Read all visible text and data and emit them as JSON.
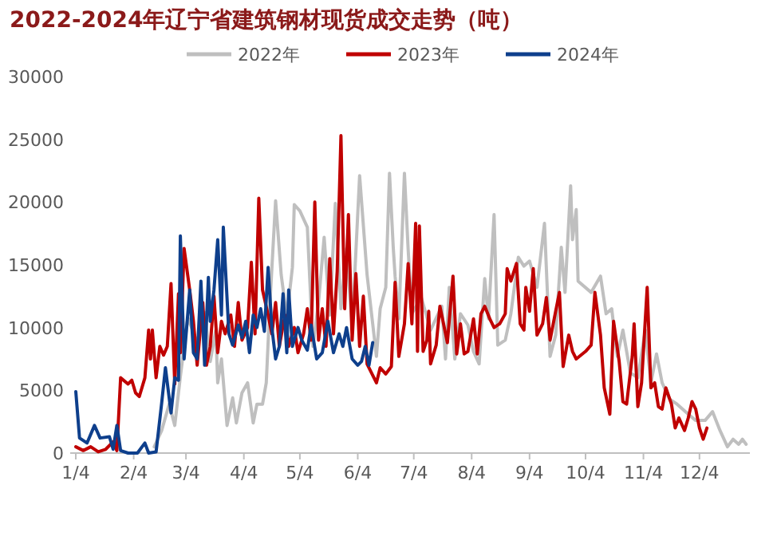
{
  "chart_data": {
    "type": "line",
    "title": "2022-2024年辽宁省建筑钢材现货成交走势（吨）",
    "legend": "top",
    "grid": false,
    "marker": "none",
    "line_style": "solid",
    "xlim": [
      "--01-01",
      "--12-31"
    ],
    "xticks": [
      {
        "value": "--01-04",
        "label": "1/4"
      },
      {
        "value": "--02-04",
        "label": "2/4"
      },
      {
        "value": "--03-04",
        "label": "3/4"
      },
      {
        "value": "--04-04",
        "label": "4/4"
      },
      {
        "value": "--05-04",
        "label": "5/4"
      },
      {
        "value": "--06-04",
        "label": "6/4"
      },
      {
        "value": "--07-04",
        "label": "7/4"
      },
      {
        "value": "--08-04",
        "label": "8/4"
      },
      {
        "value": "--09-04",
        "label": "9/4"
      },
      {
        "value": "--10-04",
        "label": "10/4"
      },
      {
        "value": "--11-04",
        "label": "11/4"
      },
      {
        "value": "--12-04",
        "label": "12/4"
      }
    ],
    "ylim": [
      0,
      30000
    ],
    "yticks": [
      0,
      5000,
      10000,
      15000,
      20000,
      25000,
      30000
    ],
    "series": [
      {
        "name": "2022年",
        "color": "#bfbfbf",
        "x": [
          "--02-15",
          "--02-19",
          "--02-23",
          "--02-26",
          "--03-01",
          "--03-05",
          "--03-10",
          "--03-14",
          "--03-17",
          "--03-20",
          "--03-21",
          "--03-23",
          "--03-26",
          "--03-29",
          "--03-31",
          "--04-03",
          "--04-06",
          "--04-09",
          "--04-11",
          "--04-14",
          "--04-16",
          "--04-18",
          "--04-21",
          "--04-24",
          "--04-27",
          "--04-30",
          "--05-01",
          "--05-04",
          "--05-08",
          "--05-11",
          "--05-14",
          "--05-17",
          "--05-20",
          "--05-23",
          "--05-26",
          "--05-29",
          "--06-01",
          "--06-05",
          "--06-09",
          "--06-14",
          "--06-16",
          "--06-19",
          "--06-21",
          "--06-23",
          "--06-24",
          "--06-26",
          "--06-29",
          "--07-01",
          "--07-03",
          "--07-08",
          "--07-13",
          "--07-19",
          "--07-21",
          "--07-23",
          "--07-26",
          "--07-29",
          "--08-02",
          "--08-05",
          "--08-08",
          "--08-11",
          "--08-13",
          "--08-16",
          "--08-18",
          "--08-22",
          "--08-25",
          "--08-29",
          "--09-01",
          "--09-04",
          "--09-08",
          "--09-12",
          "--09-15",
          "--09-18",
          "--09-21",
          "--09-23",
          "--09-26",
          "--09-27",
          "--09-29",
          "--09-30",
          "--10-07",
          "--10-12",
          "--10-15",
          "--10-18",
          "--10-21",
          "--10-24",
          "--10-28",
          "--11-01",
          "--11-05",
          "--11-08",
          "--11-11",
          "--11-14",
          "--11-18",
          "--11-22",
          "--11-25",
          "--11-28",
          "--12-02",
          "--12-07",
          "--12-11",
          "--12-15",
          "--12-19",
          "--12-22",
          "--12-25",
          "--12-27",
          "--12-29"
        ],
        "values": [
          500,
          1800,
          3900,
          2200,
          6100,
          10800,
          8800,
          11200,
          7300,
          9800,
          5600,
          7500,
          2200,
          4400,
          2400,
          4800,
          5600,
          2400,
          3900,
          3900,
          5600,
          12000,
          20100,
          14200,
          10800,
          14800,
          19800,
          19300,
          18000,
          8500,
          12000,
          17200,
          11000,
          19900,
          11500,
          16300,
          10000,
          22100,
          14200,
          7700,
          11500,
          13200,
          22300,
          16400,
          14100,
          10700,
          22300,
          16200,
          11100,
          12400,
          9800,
          11700,
          7500,
          13200,
          7500,
          11100,
          10200,
          8100,
          7100,
          13900,
          10700,
          19000,
          8600,
          9000,
          11100,
          15600,
          14900,
          15300,
          13200,
          18300,
          7700,
          9400,
          16400,
          12800,
          21300,
          17000,
          19400,
          13700,
          12800,
          14100,
          11100,
          11500,
          7700,
          9800,
          6400,
          6000,
          9800,
          5600,
          7900,
          5600,
          4300,
          3900,
          3500,
          3100,
          2600,
          2600,
          3300,
          1800,
          500,
          1100,
          700,
          1100,
          700
        ]
      },
      {
        "name": "2023年",
        "color": "#c00000",
        "x": [
          "--01-04",
          "--01-08",
          "--01-12",
          "--01-16",
          "--01-20",
          "--01-24",
          "--01-26",
          "--01-28",
          "--02-01",
          "--02-03",
          "--02-05",
          "--02-07",
          "--02-10",
          "--02-12",
          "--02-13",
          "--02-14",
          "--02-16",
          "--02-18",
          "--02-20",
          "--02-22",
          "--02-24",
          "--02-26",
          "--02-28",
          "--03-01",
          "--03-03",
          "--03-06",
          "--03-08",
          "--03-10",
          "--03-13",
          "--03-15",
          "--03-17",
          "--03-19",
          "--03-21",
          "--03-23",
          "--03-25",
          "--03-28",
          "--03-30",
          "--04-01",
          "--04-03",
          "--04-06",
          "--04-08",
          "--04-10",
          "--04-12",
          "--04-14",
          "--04-17",
          "--04-19",
          "--04-21",
          "--04-23",
          "--04-26",
          "--04-28",
          "--05-01",
          "--05-03",
          "--05-06",
          "--05-08",
          "--05-10",
          "--05-12",
          "--05-14",
          "--05-16",
          "--05-18",
          "--05-20",
          "--05-22",
          "--05-24",
          "--05-26",
          "--05-28",
          "--05-30",
          "--06-01",
          "--06-03",
          "--06-05",
          "--06-07",
          "--06-09",
          "--06-14",
          "--06-16",
          "--06-19",
          "--06-22",
          "--06-24",
          "--06-26",
          "--06-29",
          "--07-01",
          "--07-03",
          "--07-05",
          "--07-06",
          "--07-07",
          "--07-09",
          "--07-11",
          "--07-12",
          "--07-13",
          "--07-16",
          "--07-18",
          "--07-22",
          "--07-25",
          "--07-27",
          "--07-29",
          "--07-31",
          "--08-02",
          "--08-05",
          "--08-07",
          "--08-09",
          "--08-11",
          "--08-14",
          "--08-16",
          "--08-19",
          "--08-22",
          "--08-23",
          "--08-25",
          "--08-28",
          "--08-30",
          "--09-01",
          "--09-02",
          "--09-04",
          "--09-06",
          "--09-08",
          "--09-11",
          "--09-13",
          "--09-15",
          "--09-18",
          "--09-20",
          "--09-22",
          "--09-25",
          "--09-27",
          "--09-29",
          "--10-04",
          "--10-07",
          "--10-09",
          "--10-12",
          "--10-14",
          "--10-17",
          "--10-19",
          "--10-22",
          "--10-24",
          "--10-26",
          "--10-29",
          "--10-30",
          "--11-01",
          "--11-03",
          "--11-06",
          "--11-08",
          "--11-10",
          "--11-12",
          "--11-14",
          "--11-16",
          "--11-19",
          "--11-21",
          "--11-23",
          "--11-26",
          "--11-28",
          "--11-30",
          "--12-02",
          "--12-04",
          "--12-06",
          "--12-08"
        ],
        "values": [
          500,
          200,
          500,
          100,
          300,
          900,
          200,
          6000,
          5500,
          5800,
          4800,
          4500,
          6000,
          9800,
          7500,
          9800,
          6000,
          8500,
          7800,
          8500,
          13500,
          5500,
          12700,
          8000,
          16300,
          13000,
          10500,
          7000,
          12000,
          7000,
          8500,
          12500,
          8000,
          10500,
          9500,
          11000,
          8500,
          12000,
          9000,
          10000,
          15200,
          9500,
          20300,
          13000,
          11000,
          9500,
          12000,
          8500,
          11000,
          8500,
          10000,
          8000,
          9500,
          11500,
          9000,
          20000,
          9000,
          11500,
          8500,
          15500,
          9500,
          14500,
          25300,
          11500,
          19000,
          9000,
          14300,
          8500,
          12500,
          7100,
          5600,
          6800,
          6300,
          6900,
          13600,
          7700,
          10300,
          15100,
          10300,
          18300,
          8100,
          18100,
          8100,
          9000,
          11300,
          7100,
          8600,
          11700,
          8800,
          14100,
          7900,
          10300,
          7900,
          8100,
          10700,
          7900,
          11100,
          11700,
          10600,
          10000,
          10300,
          11100,
          14700,
          13700,
          15100,
          10300,
          9800,
          13200,
          11300,
          14700,
          9400,
          10300,
          12400,
          9000,
          11300,
          12800,
          6900,
          9400,
          8100,
          7500,
          8100,
          8600,
          12800,
          9400,
          5200,
          3100,
          10500,
          7300,
          4100,
          3900,
          7700,
          10300,
          3700,
          5600,
          13200,
          5200,
          5600,
          3700,
          3500,
          5200,
          3900,
          2000,
          2800,
          1800,
          2800,
          4100,
          3500,
          2000,
          1100,
          2000
        ]
      },
      {
        "name": "2024年",
        "color": "#0e3f8c",
        "x": [
          "--01-04",
          "--01-06",
          "--01-10",
          "--01-14",
          "--01-17",
          "--01-22",
          "--01-24",
          "--01-26",
          "--01-28",
          "--02-01",
          "--02-06",
          "--02-10",
          "--02-12",
          "--02-16",
          "--02-19",
          "--02-21",
          "--02-24",
          "--02-26",
          "--02-28",
          "--03-01",
          "--03-03",
          "--03-06",
          "--03-08",
          "--03-10",
          "--03-12",
          "--03-14",
          "--03-16",
          "--03-17",
          "--03-19",
          "--03-21",
          "--03-23",
          "--03-24",
          "--03-27",
          "--03-29",
          "--04-01",
          "--04-03",
          "--04-05",
          "--04-07",
          "--04-09",
          "--04-11",
          "--04-13",
          "--04-15",
          "--04-17",
          "--04-19",
          "--04-21",
          "--04-23",
          "--04-25",
          "--04-27",
          "--04-28",
          "--04-30",
          "--05-03",
          "--05-05",
          "--05-08",
          "--05-10",
          "--05-13",
          "--05-16",
          "--05-19",
          "--05-22",
          "--05-25",
          "--05-27",
          "--05-29",
          "--06-01",
          "--06-04",
          "--06-06",
          "--06-08",
          "--06-10",
          "--06-12"
        ],
        "values": [
          4900,
          1200,
          800,
          2200,
          1200,
          1300,
          300,
          2200,
          200,
          0,
          0,
          800,
          0,
          100,
          4000,
          6800,
          3200,
          6000,
          5800,
          17300,
          7500,
          13000,
          8000,
          7500,
          13700,
          7000,
          14000,
          10500,
          13000,
          17000,
          11000,
          18000,
          9500,
          8600,
          10200,
          9200,
          10500,
          8000,
          11000,
          10000,
          11500,
          9700,
          14800,
          10000,
          7500,
          8500,
          12700,
          8000,
          13000,
          8500,
          10000,
          9000,
          8200,
          10200,
          7500,
          8000,
          10500,
          8000,
          9500,
          8500,
          10000,
          7500,
          7000,
          7300,
          8500,
          7000,
          8800
        ]
      }
    ]
  }
}
